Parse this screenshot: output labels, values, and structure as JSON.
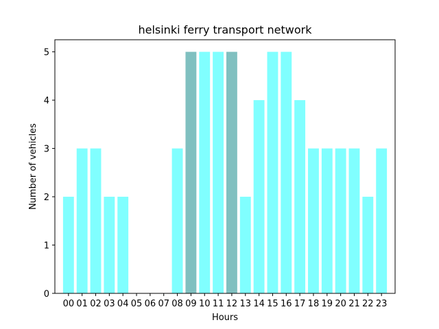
{
  "chart_data": {
    "type": "bar",
    "title": "helsinki ferry transport network",
    "xlabel": "Hours",
    "ylabel": "Number of vehicles",
    "categories": [
      "00",
      "01",
      "02",
      "03",
      "04",
      "05",
      "06",
      "07",
      "08",
      "09",
      "10",
      "11",
      "12",
      "13",
      "14",
      "15",
      "16",
      "17",
      "18",
      "19",
      "20",
      "21",
      "22",
      "23"
    ],
    "values": [
      2,
      3,
      3,
      2,
      2,
      0,
      0,
      0,
      3,
      5,
      5,
      5,
      5,
      2,
      4,
      5,
      5,
      4,
      3,
      3,
      3,
      3,
      2,
      3
    ],
    "highlighted_categories": [
      "09",
      "12"
    ],
    "colors": {
      "bar": "#80ffff",
      "bar_highlight": "#80c0c0",
      "axes": "#000000"
    },
    "ylim": [
      0,
      5.25
    ],
    "yticks": [
      0,
      1,
      2,
      3,
      4,
      5
    ],
    "grid": false,
    "legend": "none"
  }
}
